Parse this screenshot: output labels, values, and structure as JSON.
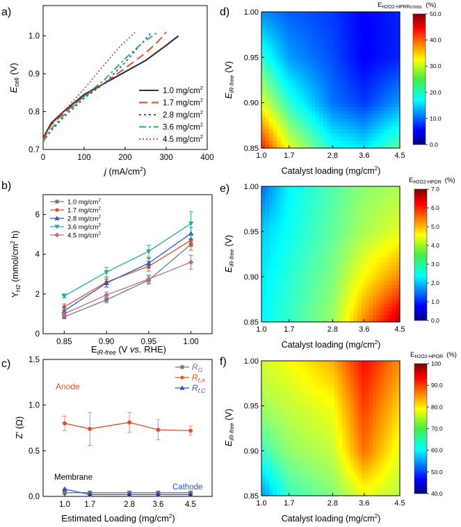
{
  "chart_data": [
    {
      "panel": "a)",
      "type": "line",
      "xlabel_main": "j",
      "xlabel_rest": " (mA/cm",
      "xlabel_sup": "2",
      "xlabel_end": ")",
      "ylabel_main": "E",
      "ylabel_sub": "cell",
      "ylabel_end": " (V)",
      "xlim": [
        0,
        400
      ],
      "ylim": [
        0.7,
        1.08
      ],
      "xticks": [
        0,
        100,
        200,
        300,
        400
      ],
      "yticks": [
        0.7,
        0.8,
        0.9,
        1.0
      ],
      "ytick_labels": [
        "0.7",
        "0.8",
        "0.9",
        "1.0"
      ],
      "legend_unit": " mg/cm",
      "legend_sup": "2",
      "series": [
        {
          "name": "1.0",
          "color": "#333333",
          "dash": "",
          "x": [
            0,
            20,
            50,
            100,
            150,
            200,
            250,
            300,
            330
          ],
          "y": [
            0.73,
            0.77,
            0.8,
            0.845,
            0.875,
            0.905,
            0.935,
            0.975,
            1.0
          ]
        },
        {
          "name": "1.7",
          "color": "#e8401c",
          "dash": "12,6",
          "x": [
            0,
            20,
            50,
            100,
            150,
            200,
            250,
            280,
            300
          ],
          "y": [
            0.725,
            0.765,
            0.795,
            0.84,
            0.875,
            0.915,
            0.955,
            0.985,
            1.01
          ]
        },
        {
          "name": "2.8",
          "color": "#1f5ad1",
          "dash": "3,4",
          "x": [
            0,
            20,
            50,
            100,
            150,
            200,
            240,
            265
          ],
          "y": [
            0.72,
            0.75,
            0.785,
            0.835,
            0.875,
            0.93,
            0.98,
            1.01
          ]
        },
        {
          "name": "3.6",
          "color": "#2aa872",
          "dash": "10,4,3,4",
          "x": [
            0,
            20,
            50,
            100,
            150,
            200,
            240,
            280
          ],
          "y": [
            0.72,
            0.755,
            0.79,
            0.84,
            0.885,
            0.94,
            0.98,
            1.01
          ]
        },
        {
          "name": "4.5",
          "color": "#c04b63",
          "dash": "2,3",
          "x": [
            0,
            20,
            50,
            100,
            150,
            190,
            225
          ],
          "y": [
            0.73,
            0.765,
            0.8,
            0.86,
            0.925,
            0.975,
            1.01
          ]
        }
      ]
    },
    {
      "panel": "b)",
      "type": "line",
      "xlabel_main": "E",
      "xlabel_sub": "iR-free",
      "xlabel_rest": " (V ",
      "xlabel_it": "vs.",
      "xlabel_end": " RHE)",
      "ylabel_main": "Y",
      "ylabel_sub": "H2",
      "ylabel_rest": " (mmol/cm",
      "ylabel_sup": "2",
      "ylabel_end": " h)",
      "categories": [
        "0.85",
        "0.90",
        "0.95",
        "1.00"
      ],
      "x": [
        0.85,
        0.9,
        0.95,
        1.0
      ],
      "xlim": [
        0.825,
        1.025
      ],
      "ylim": [
        0,
        7
      ],
      "yticks": [
        0,
        2,
        4,
        6
      ],
      "legend_unit": " mg/cm",
      "legend_sup": "2",
      "series": [
        {
          "name": "1.0",
          "color": "#777777",
          "marker": "square",
          "values": [
            0.85,
            1.7,
            2.7,
            4.5
          ],
          "err": [
            0.1,
            0.15,
            0.2,
            0.3
          ]
        },
        {
          "name": "1.7",
          "color": "#e0502a",
          "marker": "circle",
          "values": [
            1.35,
            2.6,
            3.4,
            4.7
          ],
          "err": [
            0.15,
            0.25,
            0.25,
            0.3
          ]
        },
        {
          "name": "2.8",
          "color": "#2a56c6",
          "marker": "triangle-up",
          "values": [
            1.15,
            2.55,
            3.55,
            5.05
          ],
          "err": [
            0.15,
            0.2,
            0.25,
            0.3
          ]
        },
        {
          "name": "3.6",
          "color": "#2aa89a",
          "marker": "triangle-down",
          "values": [
            1.9,
            3.1,
            4.15,
            5.55
          ],
          "err": [
            0.1,
            0.25,
            0.3,
            0.6
          ]
        },
        {
          "name": "4.5",
          "color": "#b07090",
          "marker": "diamond",
          "values": [
            1.0,
            1.95,
            2.75,
            3.6
          ],
          "err": [
            0.1,
            0.15,
            0.2,
            0.35
          ]
        }
      ]
    },
    {
      "panel": "c)",
      "type": "line",
      "xlabel": "Estimated Loading (mg/cm",
      "xlabel_sup": "2",
      "xlabel_end": ")",
      "ylabel": "Z' (Ω)",
      "categories": [
        "1.0",
        "1.7",
        "2.8",
        "3.6",
        "4.5"
      ],
      "x": [
        1.0,
        1.7,
        2.8,
        3.6,
        4.5
      ],
      "xlim": [
        0.4,
        5.1
      ],
      "ylim": [
        0,
        1.5
      ],
      "yticks": [
        0.0,
        0.5,
        1.0,
        1.5
      ],
      "ytick_labels": [
        "0.0",
        "0.5",
        "1.0",
        "1.5"
      ],
      "annotations": {
        "anode": "Anode",
        "membrane": "Membrane",
        "cathode": "Cathode"
      },
      "series": [
        {
          "name_main": "R",
          "name_sub": "Ω",
          "color": "#777777",
          "marker": "square",
          "values": [
            0.04,
            0.04,
            0.04,
            0.04,
            0.04
          ],
          "err": [
            0.005,
            0.005,
            0.005,
            0.005,
            0.005
          ]
        },
        {
          "name_main": "R",
          "name_sub": "f,A",
          "color": "#e0502a",
          "marker": "circle",
          "values": [
            0.8,
            0.74,
            0.81,
            0.73,
            0.72
          ],
          "err": [
            0.08,
            0.18,
            0.11,
            0.11,
            0.05
          ]
        },
        {
          "name_main": "R",
          "name_sub": "f,C",
          "color": "#2a56c6",
          "marker": "triangle-up",
          "values": [
            0.08,
            0.02,
            0.02,
            0.02,
            0.02
          ],
          "err": [
            0.01,
            0.005,
            0.005,
            0.005,
            0.005
          ]
        }
      ]
    },
    {
      "panel": "d)",
      "type": "heatmap",
      "xlabel": "Catalyst loading (mg/cm",
      "xlabel_sup": "2",
      "xlabel_end": ")",
      "ylabel_main": "E",
      "ylabel_sub": "iR-free",
      "ylabel_end": " (V)",
      "xticks": [
        1.0,
        1.7,
        2.8,
        3.6,
        4.5
      ],
      "yticks": [
        0.85,
        0.9,
        0.95,
        1.0
      ],
      "ytick_labels": [
        "0.85",
        "0.90",
        "0.95",
        "1.00"
      ],
      "xlim": [
        1.0,
        4.5
      ],
      "ylim": [
        0.85,
        1.0
      ],
      "colorbar_title_main": "E",
      "colorbar_title_sub": "H2O2-HPRRcross",
      "colorbar_title_unit": "(%)",
      "colorbar_range": [
        0,
        50
      ],
      "colorbar_ticks": [
        "0.0",
        "10.0",
        "20.0",
        "30.0",
        "40.0",
        "50.0"
      ],
      "rows_y": [
        0.85,
        0.9,
        0.95,
        1.0
      ],
      "z": [
        [
          43,
          30,
          20,
          18,
          24
        ],
        [
          30,
          21,
          12,
          9,
          14
        ],
        [
          21,
          14,
          10,
          6,
          8
        ],
        [
          13,
          11,
          9,
          6,
          8
        ]
      ]
    },
    {
      "panel": "e)",
      "type": "heatmap",
      "xlabel": "Catalyst loading (mg/cm",
      "xlabel_sup": "2",
      "xlabel_end": ")",
      "ylabel_main": "E",
      "ylabel_sub": "iR-free",
      "ylabel_end": " (V)",
      "xticks": [
        1.0,
        1.7,
        2.8,
        3.6,
        4.5
      ],
      "yticks": [
        0.85,
        0.9,
        0.95,
        1.0
      ],
      "ytick_labels": [
        "0.85",
        "0.90",
        "0.95",
        "1.00"
      ],
      "xlim": [
        1.0,
        4.5
      ],
      "ylim": [
        0.85,
        1.0
      ],
      "colorbar_title_main": "E",
      "colorbar_title_sub": "H2O2-HPDR",
      "colorbar_title_unit": "(%)",
      "colorbar_range": [
        0,
        7
      ],
      "colorbar_ticks": [
        "0.0",
        "1.0",
        "2.0",
        "3.0",
        "4.0",
        "5.0",
        "6.0",
        "7.0"
      ],
      "rows_y": [
        0.85,
        0.9,
        0.95,
        1.0
      ],
      "z": [
        [
          2.6,
          3.0,
          3.7,
          5.2,
          6.6
        ],
        [
          2.5,
          2.9,
          3.5,
          4.4,
          5.2
        ],
        [
          2.3,
          2.7,
          3.3,
          3.8,
          4.2
        ],
        [
          1.6,
          2.6,
          3.2,
          3.6,
          3.8
        ]
      ]
    },
    {
      "panel": "f)",
      "type": "heatmap",
      "xlabel": "Catalyst loading (mg/cm",
      "xlabel_sup": "2",
      "xlabel_end": ")",
      "ylabel_main": "E",
      "ylabel_sub": "iR-free",
      "ylabel_end": " (V)",
      "xticks": [
        1.0,
        1.7,
        2.8,
        3.6,
        4.5
      ],
      "yticks": [
        0.85,
        0.9,
        0.95,
        1.0
      ],
      "ytick_labels": [
        "0.85",
        "0.90",
        "0.95",
        "1.00"
      ],
      "xlim": [
        1.0,
        4.5
      ],
      "ylim": [
        0.85,
        1.0
      ],
      "colorbar_title_main": "E",
      "colorbar_title_sub": "H2O2-HPOR",
      "colorbar_title_unit": "(%)",
      "colorbar_range": [
        40,
        100
      ],
      "colorbar_ticks": [
        "40.0",
        "50.0",
        "60.0",
        "70.0",
        "80.0",
        "90.0",
        "100"
      ],
      "rows_y": [
        0.85,
        0.9,
        0.95,
        1.0
      ],
      "z": [
        [
          56,
          66,
          70,
          76,
          73
        ],
        [
          66,
          71,
          74,
          86,
          76
        ],
        [
          72,
          74,
          77,
          89,
          80
        ],
        [
          75,
          77,
          82,
          92,
          84
        ]
      ]
    }
  ]
}
